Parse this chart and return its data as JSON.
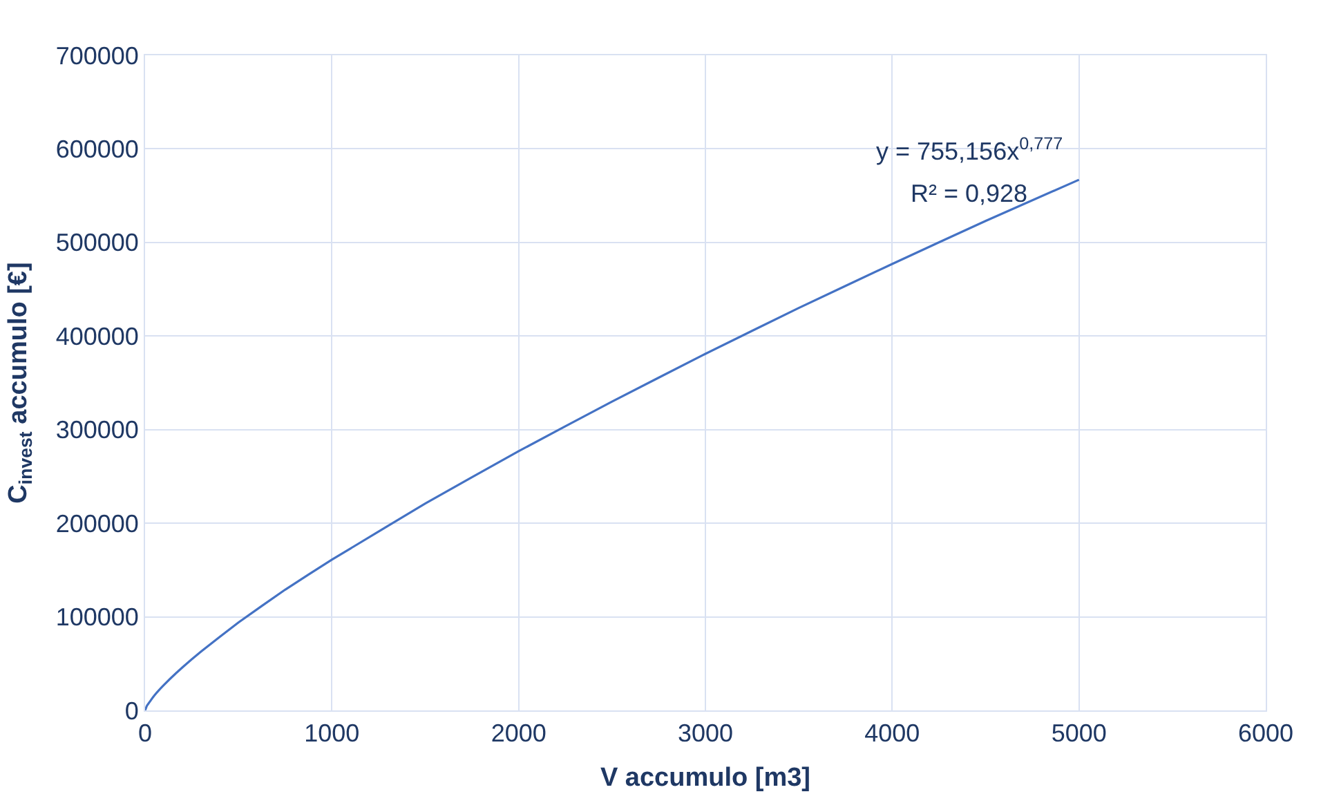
{
  "chart_data": {
    "type": "line",
    "xlabel": "V accumulo [m3]",
    "ylabel": "C$_{invest}$ accumulo [€]",
    "annotations": [
      "y = 755,156x$^{0,777}$",
      "R² = 0,928"
    ],
    "x": [
      0,
      10,
      50,
      100,
      200,
      300,
      500,
      750,
      1000,
      1500,
      2000,
      2500,
      3000,
      3500,
      4000,
      4500,
      5000
    ],
    "series": [
      {
        "color": "#4472c4",
        "values": [
          0,
          5000,
          16000,
          27000,
          46000,
          63000,
          94000,
          129000,
          161000,
          221000,
          277000,
          330000,
          381000,
          430000,
          477000,
          523000,
          567000
        ]
      }
    ],
    "xlim": [
      0,
      6000
    ],
    "xticks": [
      0,
      1000,
      2000,
      3000,
      4000,
      5000,
      6000
    ],
    "ylim": [
      0,
      700000
    ],
    "yticks": [
      0,
      100000,
      200000,
      300000,
      400000,
      500000,
      600000,
      700000
    ],
    "grid": true,
    "marker": "none",
    "line_style": "solid"
  }
}
